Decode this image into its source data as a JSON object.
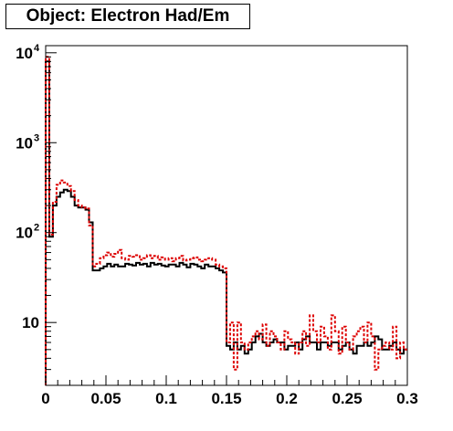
{
  "chart_data": {
    "type": "line",
    "title": "Object: Electron Had/Em",
    "xlabel": "",
    "ylabel": "",
    "xlim": [
      0,
      0.3
    ],
    "ylim": [
      2,
      12000
    ],
    "y_scale": "log",
    "grid": false,
    "x_ticks": [
      0,
      0.05,
      0.1,
      0.15,
      0.2,
      0.25,
      0.3
    ],
    "x_tick_labels": [
      "0",
      "0.05",
      "0.1",
      "0.15",
      "0.2",
      "0.25",
      "0.3"
    ],
    "y_ticks": [
      {
        "value": 10,
        "base": "10",
        "exp": ""
      },
      {
        "value": 100,
        "base": "10",
        "exp": "2"
      },
      {
        "value": 1000,
        "base": "10",
        "exp": "3"
      },
      {
        "value": 10000,
        "base": "10",
        "exp": "4"
      }
    ],
    "bin_edges": [
      0,
      0.003,
      0.006,
      0.009,
      0.012,
      0.015,
      0.018,
      0.021,
      0.024,
      0.027,
      0.03,
      0.033,
      0.036,
      0.039,
      0.042,
      0.045,
      0.048,
      0.051,
      0.054,
      0.057,
      0.06,
      0.063,
      0.066,
      0.069,
      0.072,
      0.075,
      0.078,
      0.081,
      0.084,
      0.087,
      0.09,
      0.093,
      0.096,
      0.099,
      0.102,
      0.105,
      0.108,
      0.111,
      0.114,
      0.117,
      0.12,
      0.123,
      0.126,
      0.129,
      0.132,
      0.135,
      0.138,
      0.141,
      0.144,
      0.147,
      0.15,
      0.153,
      0.156,
      0.159,
      0.162,
      0.165,
      0.168,
      0.171,
      0.174,
      0.177,
      0.18,
      0.183,
      0.186,
      0.189,
      0.192,
      0.195,
      0.198,
      0.201,
      0.204,
      0.207,
      0.21,
      0.213,
      0.216,
      0.219,
      0.222,
      0.225,
      0.228,
      0.231,
      0.234,
      0.237,
      0.24,
      0.243,
      0.246,
      0.249,
      0.252,
      0.255,
      0.258,
      0.261,
      0.264,
      0.267,
      0.27,
      0.273,
      0.276,
      0.279,
      0.282,
      0.285,
      0.288,
      0.291,
      0.294,
      0.297,
      0.3
    ],
    "series": [
      {
        "color": "#000000",
        "dash": "solid",
        "values": [
          8000,
          90,
          200,
          250,
          280,
          300,
          290,
          250,
          200,
          190,
          190,
          180,
          130,
          38,
          38,
          40,
          42,
          45,
          42,
          44,
          42,
          42,
          45,
          44,
          43,
          46,
          44,
          45,
          42,
          46,
          44,
          45,
          43,
          42,
          44,
          44,
          42,
          46,
          44,
          41,
          45,
          44,
          42,
          40,
          44,
          42,
          42,
          40,
          38,
          36,
          5.5,
          5,
          6,
          5,
          5.5,
          4.5,
          5,
          6,
          7,
          7.5,
          6,
          5.5,
          6,
          6.5,
          6,
          6,
          5,
          5.5,
          5.5,
          6,
          5,
          6.5,
          7,
          6,
          6,
          5,
          6,
          6,
          5.5,
          6,
          6,
          5,
          5.5,
          6,
          5,
          4.5,
          5.5,
          5.5,
          6,
          5.5,
          6,
          7,
          6.5,
          5,
          5,
          5.5,
          6,
          5,
          4.5,
          5
        ]
      },
      {
        "color": "#dd0000",
        "dash": "dotted",
        "values": [
          9000,
          95,
          220,
          340,
          380,
          360,
          330,
          290,
          230,
          200,
          190,
          185,
          120,
          42,
          45,
          52,
          56,
          60,
          54,
          58,
          64,
          52,
          50,
          55,
          54,
          56,
          50,
          52,
          56,
          52,
          55,
          50,
          53,
          50,
          52,
          48,
          52,
          55,
          49,
          50,
          52,
          53,
          50,
          48,
          50,
          52,
          50,
          44,
          42,
          40,
          6,
          10,
          3,
          10,
          6,
          5,
          6,
          7,
          8,
          6.5,
          9.5,
          5.5,
          8,
          7,
          6,
          5,
          8,
          6.5,
          6,
          4.5,
          6,
          8,
          5.5,
          12,
          8,
          6,
          9,
          7,
          5,
          12,
          8,
          4.5,
          9,
          6,
          5,
          7,
          8,
          9,
          6,
          10,
          7,
          3,
          5,
          5.5,
          6,
          5,
          9,
          4,
          6,
          5
        ]
      }
    ]
  }
}
